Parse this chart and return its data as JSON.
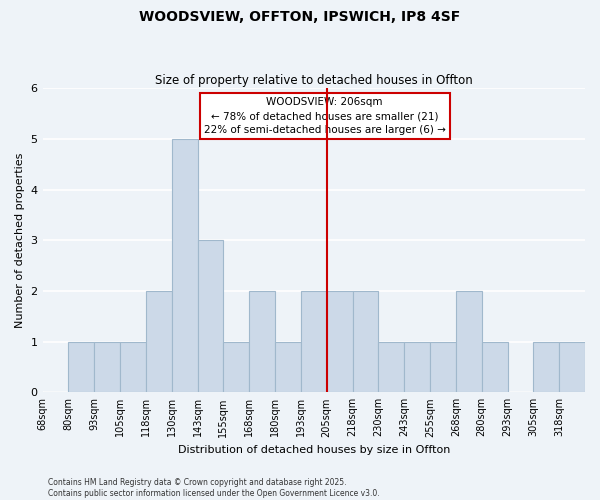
{
  "title": "WOODSVIEW, OFFTON, IPSWICH, IP8 4SF",
  "subtitle": "Size of property relative to detached houses in Offton",
  "xlabel": "Distribution of detached houses by size in Offton",
  "ylabel": "Number of detached properties",
  "bin_labels": [
    "68sqm",
    "80sqm",
    "93sqm",
    "105sqm",
    "118sqm",
    "130sqm",
    "143sqm",
    "155sqm",
    "168sqm",
    "180sqm",
    "193sqm",
    "205sqm",
    "218sqm",
    "230sqm",
    "243sqm",
    "255sqm",
    "268sqm",
    "280sqm",
    "293sqm",
    "305sqm",
    "318sqm"
  ],
  "bar_heights": [
    0,
    1,
    1,
    1,
    2,
    5,
    3,
    1,
    2,
    1,
    2,
    2,
    2,
    1,
    1,
    1,
    2,
    1,
    0,
    1,
    1
  ],
  "bar_color": "#ccd9e8",
  "bar_edge_color": "#a0b8cc",
  "reference_line_color": "#cc0000",
  "reference_line_label": "205sqm",
  "annotation_title": "WOODSVIEW: 206sqm",
  "annotation_line2": "← 78% of detached houses are smaller (21)",
  "annotation_line3": "22% of semi-detached houses are larger (6) →",
  "annotation_box_color": "#ffffff",
  "annotation_box_edge_color": "#cc0000",
  "ylim": [
    0,
    6
  ],
  "yticks": [
    0,
    1,
    2,
    3,
    4,
    5,
    6
  ],
  "background_color": "#eef3f8",
  "plot_bg_color": "#eef3f8",
  "grid_color": "#ffffff",
  "footer_line1": "Contains HM Land Registry data © Crown copyright and database right 2025.",
  "footer_line2": "Contains public sector information licensed under the Open Government Licence v3.0."
}
